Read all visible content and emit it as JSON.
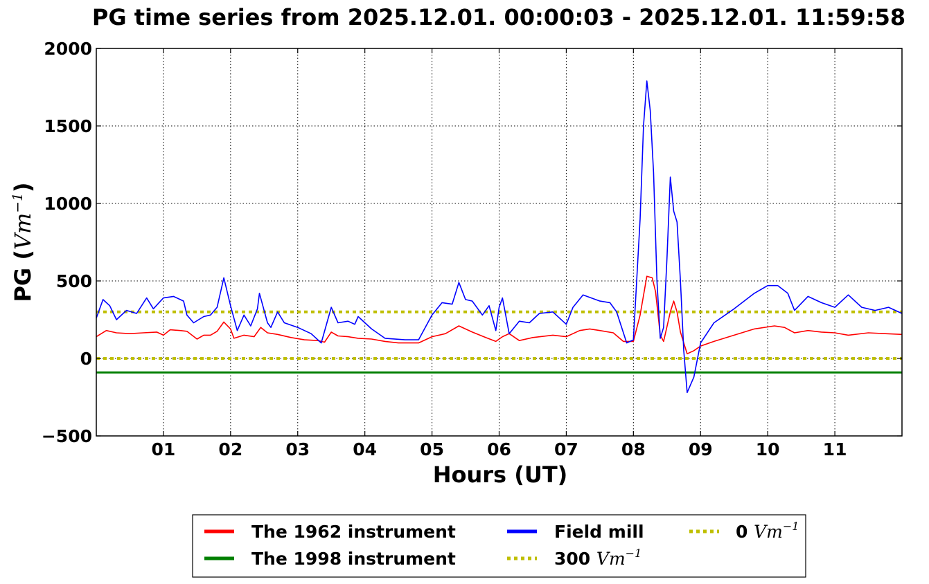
{
  "chart_data": {
    "type": "line",
    "title": "PG time series from 2025.12.01. 00:00:03 - 2025.12.01. 11:59:58",
    "xlabel": "Hours (UT)",
    "ylabel_prefix": "PG (",
    "ylabel_unit": "Vm",
    "ylabel_exp": "−1",
    "ylabel_suffix": ")",
    "xlim": [
      0,
      12
    ],
    "ylim": [
      -500,
      2000
    ],
    "grid": true,
    "legend_position": "bottom",
    "x_ticks": [
      {
        "value": 1,
        "label": "01"
      },
      {
        "value": 2,
        "label": "02"
      },
      {
        "value": 3,
        "label": "03"
      },
      {
        "value": 4,
        "label": "04"
      },
      {
        "value": 5,
        "label": "05"
      },
      {
        "value": 6,
        "label": "06"
      },
      {
        "value": 7,
        "label": "07"
      },
      {
        "value": 8,
        "label": "08"
      },
      {
        "value": 9,
        "label": "09"
      },
      {
        "value": 10,
        "label": "10"
      },
      {
        "value": 11,
        "label": "11"
      }
    ],
    "y_ticks": [
      {
        "value": -500,
        "label": "−500"
      },
      {
        "value": 0,
        "label": "0"
      },
      {
        "value": 500,
        "label": "500"
      },
      {
        "value": 1000,
        "label": "1000"
      },
      {
        "value": 1500,
        "label": "1500"
      },
      {
        "value": 2000,
        "label": "2000"
      }
    ],
    "series": [
      {
        "name": "The 1962 instrument",
        "color": "#ff0000",
        "style": "solid",
        "points": [
          [
            0.0,
            140
          ],
          [
            0.15,
            180
          ],
          [
            0.3,
            165
          ],
          [
            0.5,
            160
          ],
          [
            0.7,
            165
          ],
          [
            0.9,
            170
          ],
          [
            1.0,
            150
          ],
          [
            1.1,
            185
          ],
          [
            1.25,
            180
          ],
          [
            1.35,
            175
          ],
          [
            1.5,
            125
          ],
          [
            1.6,
            150
          ],
          [
            1.7,
            150
          ],
          [
            1.8,
            175
          ],
          [
            1.9,
            235
          ],
          [
            2.0,
            190
          ],
          [
            2.05,
            130
          ],
          [
            2.2,
            150
          ],
          [
            2.35,
            140
          ],
          [
            2.45,
            200
          ],
          [
            2.55,
            165
          ],
          [
            2.7,
            155
          ],
          [
            2.9,
            135
          ],
          [
            3.1,
            120
          ],
          [
            3.3,
            115
          ],
          [
            3.4,
            105
          ],
          [
            3.5,
            170
          ],
          [
            3.6,
            145
          ],
          [
            3.75,
            140
          ],
          [
            3.9,
            130
          ],
          [
            4.1,
            125
          ],
          [
            4.3,
            110
          ],
          [
            4.5,
            100
          ],
          [
            4.8,
            100
          ],
          [
            5.0,
            140
          ],
          [
            5.2,
            160
          ],
          [
            5.4,
            210
          ],
          [
            5.6,
            170
          ],
          [
            5.8,
            135
          ],
          [
            5.95,
            110
          ],
          [
            6.05,
            140
          ],
          [
            6.15,
            160
          ],
          [
            6.3,
            115
          ],
          [
            6.5,
            135
          ],
          [
            6.8,
            150
          ],
          [
            7.0,
            140
          ],
          [
            7.2,
            180
          ],
          [
            7.35,
            190
          ],
          [
            7.5,
            180
          ],
          [
            7.7,
            165
          ],
          [
            7.85,
            110
          ],
          [
            8.0,
            110
          ],
          [
            8.1,
            280
          ],
          [
            8.2,
            530
          ],
          [
            8.28,
            520
          ],
          [
            8.33,
            430
          ],
          [
            8.4,
            150
          ],
          [
            8.45,
            110
          ],
          [
            8.55,
            300
          ],
          [
            8.6,
            370
          ],
          [
            8.65,
            300
          ],
          [
            8.7,
            170
          ],
          [
            8.75,
            100
          ],
          [
            8.8,
            30
          ],
          [
            8.9,
            50
          ],
          [
            9.0,
            80
          ],
          [
            9.2,
            110
          ],
          [
            9.5,
            150
          ],
          [
            9.8,
            190
          ],
          [
            10.1,
            210
          ],
          [
            10.25,
            200
          ],
          [
            10.4,
            165
          ],
          [
            10.6,
            180
          ],
          [
            10.8,
            170
          ],
          [
            11.0,
            165
          ],
          [
            11.2,
            150
          ],
          [
            11.5,
            165
          ],
          [
            11.75,
            160
          ],
          [
            12.0,
            155
          ]
        ]
      },
      {
        "name": "The 1998 instrument",
        "color": "#008000",
        "style": "solid",
        "points": [
          [
            0,
            -90
          ],
          [
            12,
            -90
          ]
        ]
      },
      {
        "name": "Field mill",
        "color": "#0000ff",
        "style": "solid",
        "points": [
          [
            0.0,
            260
          ],
          [
            0.1,
            380
          ],
          [
            0.2,
            340
          ],
          [
            0.3,
            250
          ],
          [
            0.45,
            310
          ],
          [
            0.6,
            290
          ],
          [
            0.75,
            390
          ],
          [
            0.85,
            320
          ],
          [
            1.0,
            390
          ],
          [
            1.15,
            400
          ],
          [
            1.3,
            370
          ],
          [
            1.35,
            280
          ],
          [
            1.45,
            230
          ],
          [
            1.6,
            270
          ],
          [
            1.7,
            280
          ],
          [
            1.8,
            330
          ],
          [
            1.9,
            520
          ],
          [
            2.0,
            340
          ],
          [
            2.1,
            180
          ],
          [
            2.2,
            280
          ],
          [
            2.3,
            210
          ],
          [
            2.4,
            320
          ],
          [
            2.43,
            420
          ],
          [
            2.55,
            230
          ],
          [
            2.6,
            200
          ],
          [
            2.7,
            300
          ],
          [
            2.8,
            230
          ],
          [
            3.0,
            200
          ],
          [
            3.2,
            160
          ],
          [
            3.35,
            100
          ],
          [
            3.5,
            330
          ],
          [
            3.6,
            230
          ],
          [
            3.75,
            240
          ],
          [
            3.85,
            220
          ],
          [
            3.9,
            270
          ],
          [
            4.1,
            190
          ],
          [
            4.3,
            130
          ],
          [
            4.6,
            120
          ],
          [
            4.8,
            120
          ],
          [
            5.0,
            280
          ],
          [
            5.15,
            360
          ],
          [
            5.3,
            350
          ],
          [
            5.4,
            490
          ],
          [
            5.5,
            380
          ],
          [
            5.6,
            370
          ],
          [
            5.75,
            280
          ],
          [
            5.85,
            340
          ],
          [
            5.95,
            180
          ],
          [
            6.0,
            330
          ],
          [
            6.05,
            390
          ],
          [
            6.15,
            160
          ],
          [
            6.3,
            240
          ],
          [
            6.45,
            230
          ],
          [
            6.6,
            290
          ],
          [
            6.8,
            300
          ],
          [
            7.0,
            220
          ],
          [
            7.1,
            330
          ],
          [
            7.25,
            410
          ],
          [
            7.5,
            370
          ],
          [
            7.65,
            360
          ],
          [
            7.75,
            300
          ],
          [
            7.9,
            100
          ],
          [
            8.0,
            120
          ],
          [
            8.1,
            900
          ],
          [
            8.15,
            1500
          ],
          [
            8.2,
            1790
          ],
          [
            8.25,
            1600
          ],
          [
            8.3,
            1200
          ],
          [
            8.35,
            500
          ],
          [
            8.4,
            130
          ],
          [
            8.45,
            200
          ],
          [
            8.5,
            650
          ],
          [
            8.55,
            1170
          ],
          [
            8.6,
            950
          ],
          [
            8.65,
            880
          ],
          [
            8.7,
            500
          ],
          [
            8.75,
            50
          ],
          [
            8.8,
            -220
          ],
          [
            8.9,
            -120
          ],
          [
            9.0,
            100
          ],
          [
            9.2,
            230
          ],
          [
            9.5,
            320
          ],
          [
            9.8,
            420
          ],
          [
            10.0,
            470
          ],
          [
            10.15,
            470
          ],
          [
            10.3,
            420
          ],
          [
            10.4,
            310
          ],
          [
            10.6,
            400
          ],
          [
            10.8,
            360
          ],
          [
            11.0,
            330
          ],
          [
            11.2,
            410
          ],
          [
            11.4,
            330
          ],
          [
            11.6,
            310
          ],
          [
            11.8,
            330
          ],
          [
            12.0,
            290
          ]
        ]
      },
      {
        "name_prefix": "300 ",
        "color": "#bfbf00",
        "style": "dotted",
        "points": [
          [
            0,
            300
          ],
          [
            12,
            300
          ]
        ]
      },
      {
        "name_prefix": "0 ",
        "color": "#bfbf00",
        "style": "dotted",
        "points": [
          [
            0,
            0
          ],
          [
            12,
            0
          ]
        ]
      }
    ],
    "legend": {
      "unit": "Vm",
      "exp": "−1",
      "items": [
        {
          "series": 0,
          "label": "The 1962 instrument"
        },
        {
          "series": 1,
          "label": "The 1998 instrument"
        },
        {
          "series": 2,
          "label": "Field mill"
        },
        {
          "series": 3,
          "label": "300 "
        },
        {
          "series": 4,
          "label": "0 "
        }
      ]
    }
  }
}
